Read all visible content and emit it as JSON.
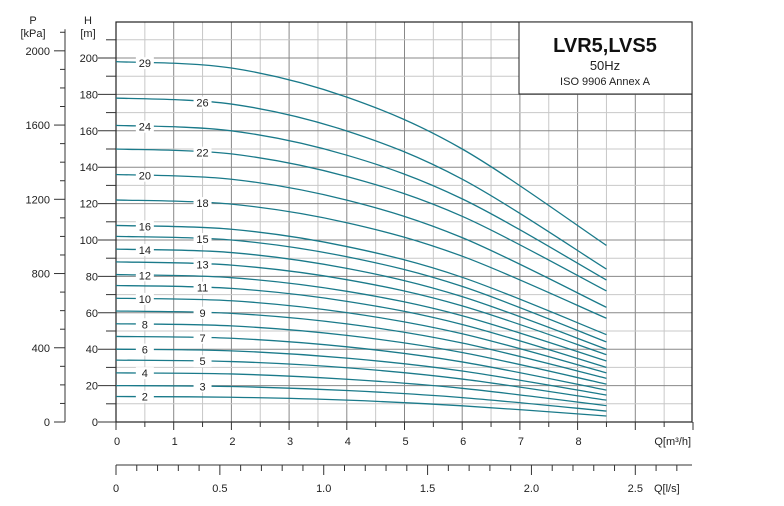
{
  "chart_data": {
    "type": "line",
    "title": "LVR5,LVS5",
    "subtitle": "50Hz",
    "note": "ISO 9906 Annex A",
    "xlabel": "Q[m³/h]",
    "xlabel_secondary": "Q[l/s]",
    "ylabel_title": "H",
    "ylabel_unit": "[m]",
    "ylabel_secondary_title": "P",
    "ylabel_secondary_unit": "[kPa]",
    "xlim": [
      0,
      10
    ],
    "ylim": [
      0,
      220
    ],
    "x_ticks": [
      0,
      1,
      2,
      3,
      4,
      5,
      6,
      7,
      8
    ],
    "y_ticks": [
      0,
      20,
      40,
      60,
      80,
      100,
      120,
      140,
      160,
      180,
      200
    ],
    "p_ticks": [
      0,
      400,
      800,
      1200,
      1600,
      2000
    ],
    "ls_ticks": [
      "0",
      "0.5",
      "1.0",
      "1.5",
      "2.0",
      "2.5"
    ],
    "grid": true,
    "line_color": "#1a7a8a",
    "x": [
      0,
      2,
      4,
      6,
      8.5
    ],
    "series": [
      {
        "name": "29",
        "values": [
          198,
          194.5,
          178.5,
          150.0,
          97
        ]
      },
      {
        "name": "26",
        "values": [
          178,
          174.7,
          159.9,
          133.4,
          84
        ]
      },
      {
        "name": "24",
        "values": [
          163,
          160.0,
          146.6,
          122.6,
          78
        ]
      },
      {
        "name": "22",
        "values": [
          150,
          147.3,
          134.9,
          113.0,
          72
        ]
      },
      {
        "name": "20",
        "values": [
          136,
          133.4,
          121.9,
          101.3,
          63
        ]
      },
      {
        "name": "18",
        "values": [
          122,
          119.7,
          109.5,
          91.1,
          57
        ]
      },
      {
        "name": "16",
        "values": [
          108,
          105.9,
          96.4,
          79.5,
          48
        ]
      },
      {
        "name": "15",
        "values": [
          102,
          100.0,
          90.8,
          74.5,
          44
        ]
      },
      {
        "name": "14",
        "values": [
          95,
          93.1,
          84.4,
          68.9,
          40
        ]
      },
      {
        "name": "13",
        "values": [
          88,
          86.2,
          78.2,
          63.8,
          37
        ]
      },
      {
        "name": "12",
        "values": [
          81,
          79.3,
          71.8,
          58.4,
          33.5
        ]
      },
      {
        "name": "11",
        "values": [
          75,
          73.4,
          66.3,
          53.6,
          30
        ]
      },
      {
        "name": "10",
        "values": [
          68,
          66.6,
          60.1,
          48.5,
          27
        ]
      },
      {
        "name": "9",
        "values": [
          61,
          59.7,
          53.9,
          43.4,
          24
        ]
      },
      {
        "name": "8",
        "values": [
          54,
          52.8,
          47.6,
          38.2,
          20.8
        ]
      },
      {
        "name": "7",
        "values": [
          47,
          46.0,
          41.3,
          33.0,
          17.5
        ]
      },
      {
        "name": "6",
        "values": [
          40,
          39.1,
          35.1,
          28.0,
          14.8
        ]
      },
      {
        "name": "5",
        "values": [
          34,
          33.2,
          29.8,
          23.6,
          12
        ]
      },
      {
        "name": "4",
        "values": [
          27,
          26.4,
          23.5,
          18.5,
          9
        ]
      },
      {
        "name": "3",
        "values": [
          20,
          19.5,
          17.3,
          13.4,
          6
        ]
      },
      {
        "name": "2",
        "values": [
          14,
          13.6,
          12.0,
          8.9,
          3.3
        ]
      }
    ]
  }
}
